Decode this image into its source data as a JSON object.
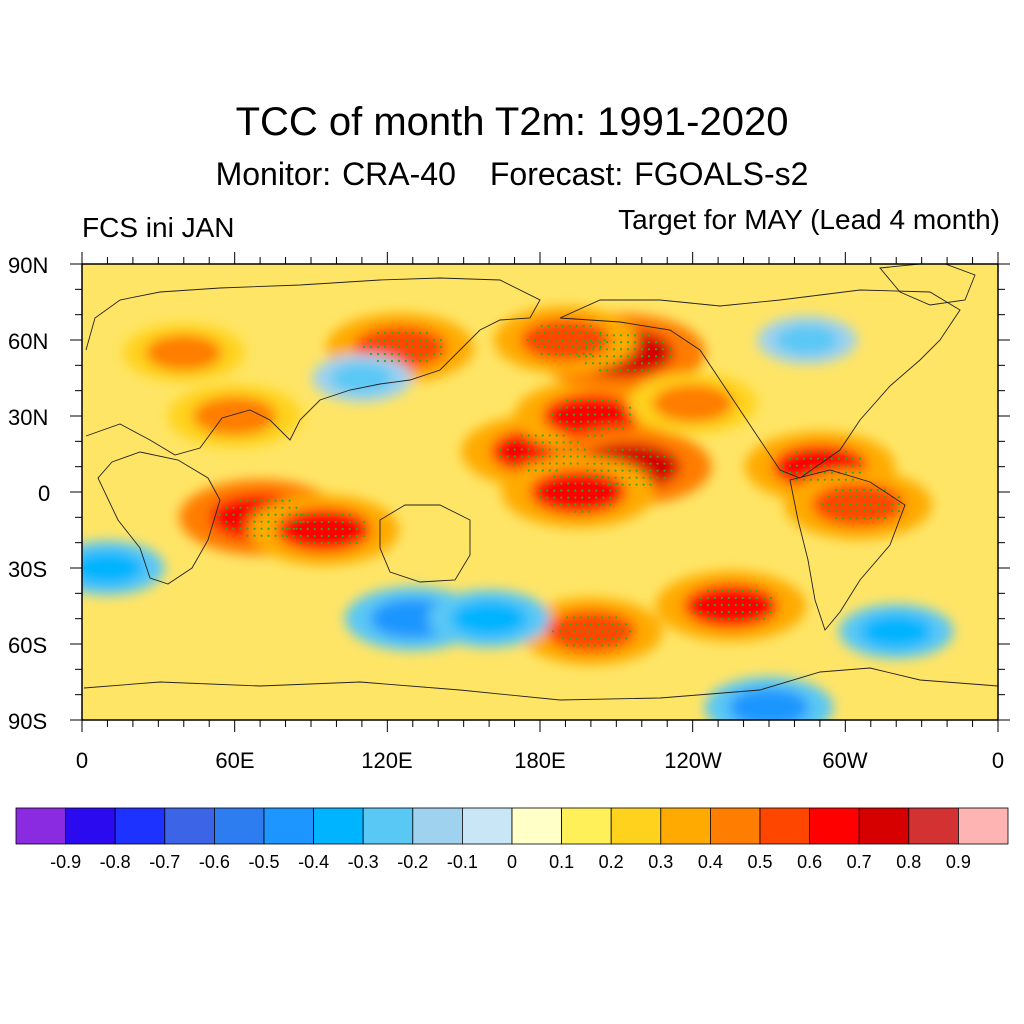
{
  "title": "TCC of month T2m: 1991-2020",
  "subtitle": {
    "monitor": "Monitor: CRA-40",
    "forecast": "Forecast: FGOALS-s2"
  },
  "left_label": "FCS ini JAN",
  "right_label": "Target for MAY (Lead 4 month)",
  "lat_labels": [
    "90N",
    "60N",
    "30N",
    "0",
    "30S",
    "60S",
    "90S"
  ],
  "lon_labels": [
    "0",
    "60E",
    "120E",
    "180E",
    "120W",
    "60W",
    "0"
  ],
  "colorbar": {
    "colors": [
      "#8a2be2",
      "#2b0af0",
      "#1e32ff",
      "#3c64e6",
      "#2d7cf0",
      "#1e96ff",
      "#00b4ff",
      "#5ac8f5",
      "#9fd2ee",
      "#c8e6f5",
      "#ffffc8",
      "#fff05a",
      "#ffd21e",
      "#ffaa00",
      "#ff7d00",
      "#ff4600",
      "#ff0000",
      "#d70000",
      "#d23232",
      "#ffb4b4"
    ],
    "labels": [
      "-0.9",
      "-0.8",
      "-0.7",
      "-0.6",
      "-0.5",
      "-0.4",
      "-0.3",
      "-0.2",
      "-0.1",
      "0",
      "0.1",
      "0.2",
      "0.3",
      "0.4",
      "0.5",
      "0.6",
      "0.7",
      "0.8",
      "0.9"
    ]
  },
  "stipple_color": "#22b022",
  "chart_data": {
    "type": "heatmap",
    "variable": "TCC of month T2m",
    "period": "1991-2020",
    "lat_range": [
      -90,
      90
    ],
    "lon_range": [
      0,
      360
    ],
    "colorbar_range": [
      -1,
      1
    ],
    "anomalies": [
      {
        "lon": 180,
        "lat": 16,
        "value": 0.65
      },
      {
        "lon": 200,
        "lat": 30,
        "value": 0.62
      },
      {
        "lon": 215,
        "lat": 10,
        "value": 0.7
      },
      {
        "lon": 212,
        "lat": 55,
        "value": 0.72
      },
      {
        "lon": 190,
        "lat": 60,
        "value": 0.55
      },
      {
        "lon": 70,
        "lat": -10,
        "value": 0.68
      },
      {
        "lon": 95,
        "lat": -15,
        "value": 0.6
      },
      {
        "lon": 195,
        "lat": 0,
        "value": 0.62
      },
      {
        "lon": 290,
        "lat": 10,
        "value": 0.6
      },
      {
        "lon": 305,
        "lat": -5,
        "value": 0.58
      },
      {
        "lon": 255,
        "lat": -45,
        "value": 0.6
      },
      {
        "lon": 200,
        "lat": -55,
        "value": 0.55
      },
      {
        "lon": 125,
        "lat": 57,
        "value": 0.58
      },
      {
        "lon": 60,
        "lat": 30,
        "value": 0.48
      },
      {
        "lon": 40,
        "lat": 55,
        "value": 0.4
      },
      {
        "lon": 240,
        "lat": 35,
        "value": 0.45
      },
      {
        "lon": 130,
        "lat": -50,
        "value": -0.5
      },
      {
        "lon": 160,
        "lat": -50,
        "value": -0.4
      },
      {
        "lon": 10,
        "lat": -30,
        "value": -0.35
      },
      {
        "lon": 270,
        "lat": -85,
        "value": -0.45
      },
      {
        "lon": 320,
        "lat": -55,
        "value": -0.35
      },
      {
        "lon": 110,
        "lat": 45,
        "value": -0.25
      },
      {
        "lon": 285,
        "lat": 60,
        "value": -0.25
      }
    ]
  }
}
